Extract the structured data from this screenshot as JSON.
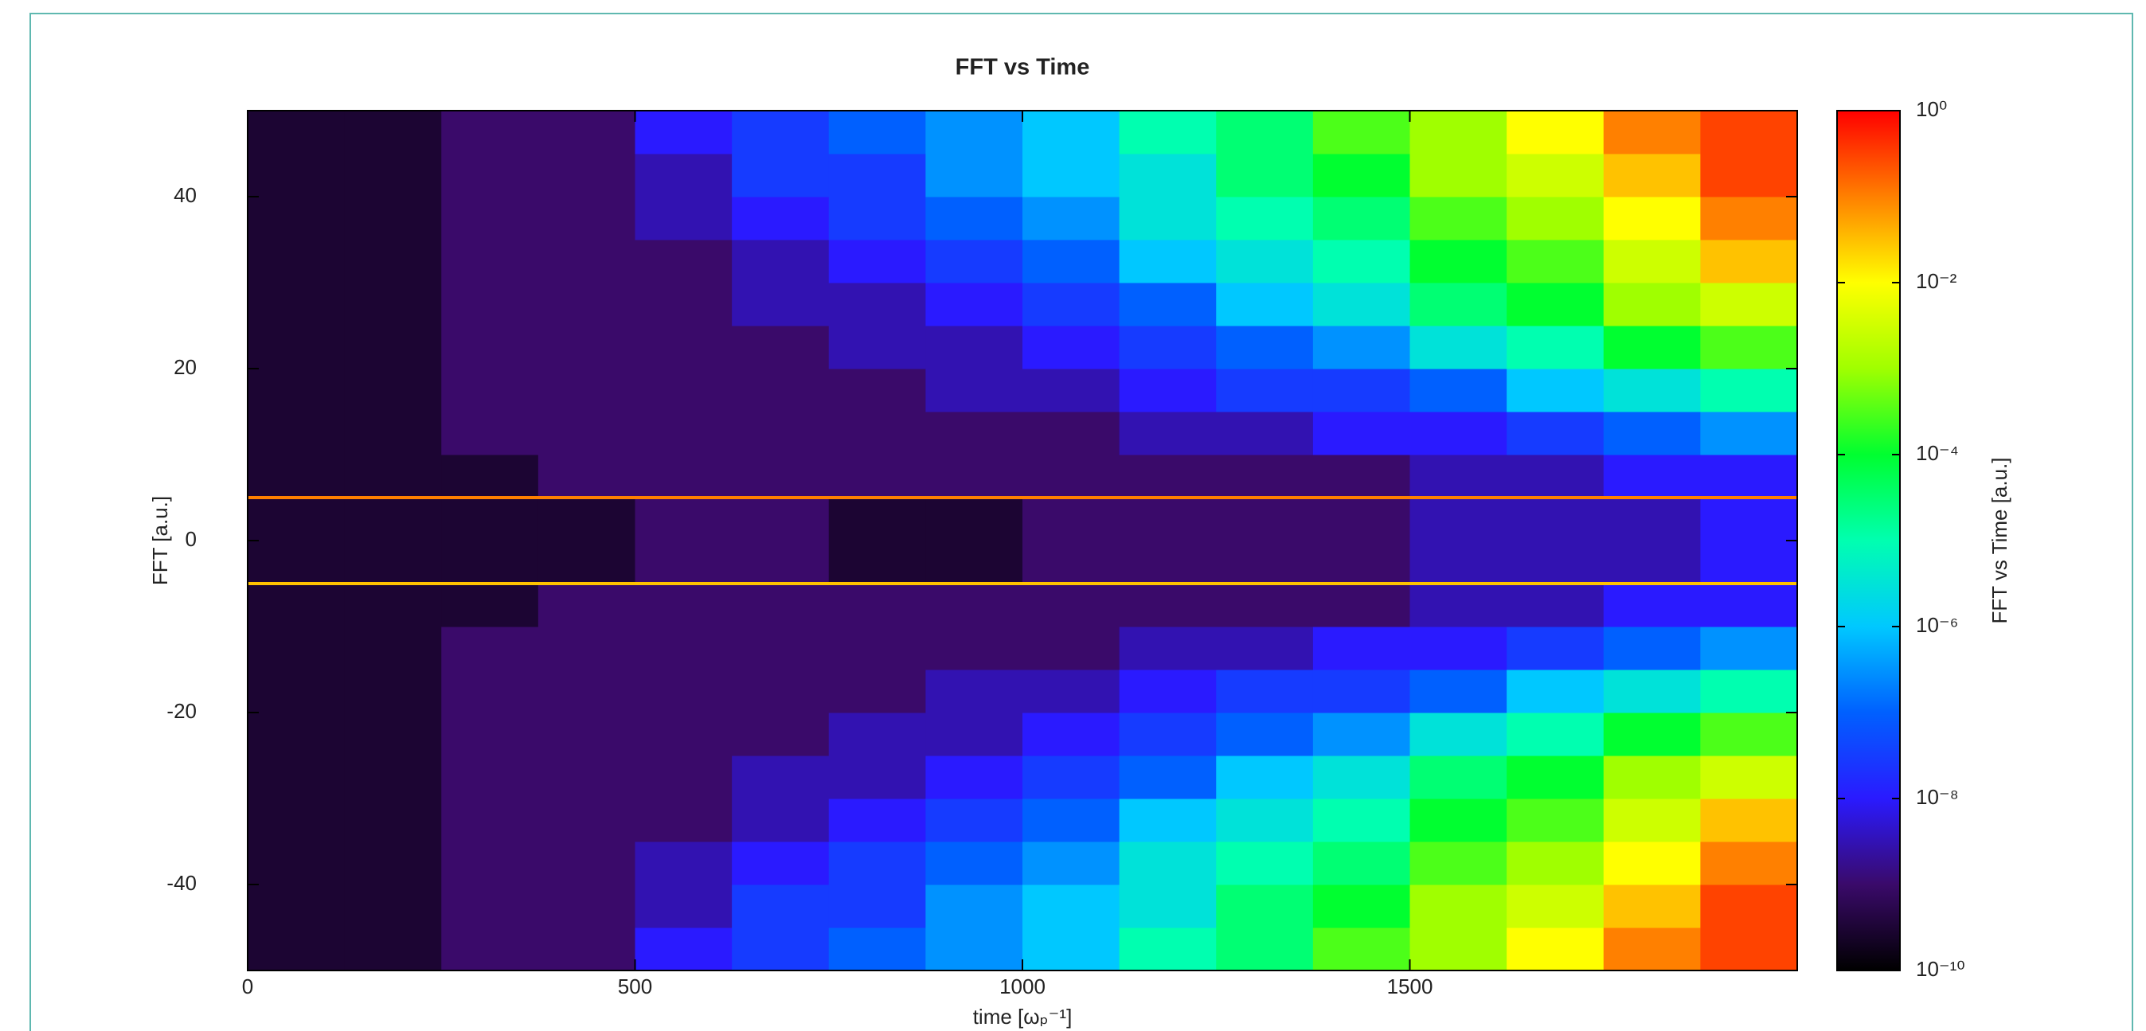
{
  "chart_data": {
    "type": "heatmap",
    "title": "FFT vs Time",
    "x_label": "time [ωₚ⁻¹]",
    "y_label": "FFT [a.u.]",
    "colorbar_label": "FFT vs Time [a.u.]",
    "xlim": [
      0,
      2000
    ],
    "xticks": [
      0,
      500,
      1000,
      1500
    ],
    "ylim": [
      -50,
      50
    ],
    "yticks": [
      -40,
      -20,
      0,
      20,
      40
    ],
    "color_scale": "log",
    "clim": [
      1e-10,
      1
    ],
    "cticks": [
      {
        "value": 1,
        "label": "10⁰"
      },
      {
        "value": 0.01,
        "label": "10⁻²"
      },
      {
        "value": 0.0001,
        "label": "10⁻⁴"
      },
      {
        "value": 1e-06,
        "label": "10⁻⁶"
      },
      {
        "value": 1e-08,
        "label": "10⁻⁸"
      },
      {
        "value": 1e-10,
        "label": "10⁻¹⁰"
      }
    ],
    "colormap": [
      "#000000",
      "#3a0a6a",
      "#2a1aff",
      "#0060ff",
      "#00c8ff",
      "#00ffb0",
      "#00ff30",
      "#a0ff00",
      "#ffff00",
      "#ff8000",
      "#ff0000"
    ],
    "xbins": [
      0,
      125,
      250,
      375,
      500,
      625,
      750,
      875,
      1000,
      1125,
      1250,
      1375,
      1500,
      1625,
      1750,
      1875,
      2000
    ],
    "ybins": [
      -50,
      -45,
      -40,
      -35,
      -30,
      -25,
      -20,
      -15,
      -10,
      -5,
      0,
      5,
      10,
      15,
      20,
      25,
      30,
      35,
      40,
      45,
      50
    ],
    "values": [
      [
        3e-10,
        3e-10,
        1e-09,
        1e-09,
        1e-08,
        3e-08,
        1e-07,
        3e-07,
        1e-06,
        1e-05,
        3e-05,
        0.0003,
        0.001,
        0.01,
        0.1,
        0.3
      ],
      [
        3e-10,
        3e-10,
        1e-09,
        1e-09,
        3e-09,
        3e-08,
        3e-08,
        3e-07,
        1e-06,
        3e-06,
        3e-05,
        0.0001,
        0.001,
        0.003,
        0.03,
        0.3
      ],
      [
        3e-10,
        3e-10,
        1e-09,
        1e-09,
        3e-09,
        1e-08,
        3e-08,
        1e-07,
        3e-07,
        3e-06,
        1e-05,
        3e-05,
        0.0003,
        0.001,
        0.01,
        0.1
      ],
      [
        3e-10,
        3e-10,
        1e-09,
        1e-09,
        1e-09,
        3e-09,
        1e-08,
        3e-08,
        1e-07,
        1e-06,
        3e-06,
        1e-05,
        0.0001,
        0.0003,
        0.003,
        0.03
      ],
      [
        3e-10,
        3e-10,
        1e-09,
        1e-09,
        1e-09,
        3e-09,
        3e-09,
        1e-08,
        3e-08,
        1e-07,
        1e-06,
        3e-06,
        3e-05,
        0.0001,
        0.001,
        0.003
      ],
      [
        3e-10,
        3e-10,
        1e-09,
        1e-09,
        1e-09,
        1e-09,
        3e-09,
        3e-09,
        1e-08,
        3e-08,
        1e-07,
        3e-07,
        3e-06,
        1e-05,
        0.0001,
        0.0003
      ],
      [
        3e-10,
        3e-10,
        1e-09,
        1e-09,
        1e-09,
        1e-09,
        1e-09,
        3e-09,
        3e-09,
        1e-08,
        3e-08,
        3e-08,
        1e-07,
        1e-06,
        3e-06,
        1e-05
      ],
      [
        3e-10,
        3e-10,
        1e-09,
        1e-09,
        1e-09,
        1e-09,
        1e-09,
        1e-09,
        1e-09,
        3e-09,
        3e-09,
        1e-08,
        1e-08,
        3e-08,
        1e-07,
        3e-07
      ],
      [
        3e-10,
        3e-10,
        3e-10,
        1e-09,
        1e-09,
        1e-09,
        1e-09,
        1e-09,
        1e-09,
        1e-09,
        1e-09,
        1e-09,
        3e-09,
        3e-09,
        1e-08,
        1e-08
      ],
      [
        3e-10,
        3e-10,
        3e-10,
        3e-10,
        1e-09,
        1e-09,
        3e-10,
        3e-10,
        1e-09,
        1e-09,
        1e-09,
        1e-09,
        3e-09,
        3e-09,
        3e-09,
        1e-08
      ],
      [
        3e-10,
        3e-10,
        3e-10,
        3e-10,
        1e-09,
        1e-09,
        3e-10,
        3e-10,
        1e-09,
        1e-09,
        1e-09,
        1e-09,
        3e-09,
        3e-09,
        3e-09,
        1e-08
      ],
      [
        3e-10,
        3e-10,
        3e-10,
        1e-09,
        1e-09,
        1e-09,
        1e-09,
        1e-09,
        1e-09,
        1e-09,
        1e-09,
        1e-09,
        3e-09,
        3e-09,
        1e-08,
        1e-08
      ],
      [
        3e-10,
        3e-10,
        1e-09,
        1e-09,
        1e-09,
        1e-09,
        1e-09,
        1e-09,
        1e-09,
        3e-09,
        3e-09,
        1e-08,
        1e-08,
        3e-08,
        1e-07,
        3e-07
      ],
      [
        3e-10,
        3e-10,
        1e-09,
        1e-09,
        1e-09,
        1e-09,
        1e-09,
        3e-09,
        3e-09,
        1e-08,
        3e-08,
        3e-08,
        1e-07,
        1e-06,
        3e-06,
        1e-05
      ],
      [
        3e-10,
        3e-10,
        1e-09,
        1e-09,
        1e-09,
        1e-09,
        3e-09,
        3e-09,
        1e-08,
        3e-08,
        1e-07,
        3e-07,
        3e-06,
        1e-05,
        0.0001,
        0.0003
      ],
      [
        3e-10,
        3e-10,
        1e-09,
        1e-09,
        1e-09,
        3e-09,
        3e-09,
        1e-08,
        3e-08,
        1e-07,
        1e-06,
        3e-06,
        3e-05,
        0.0001,
        0.001,
        0.003
      ],
      [
        3e-10,
        3e-10,
        1e-09,
        1e-09,
        1e-09,
        3e-09,
        1e-08,
        3e-08,
        1e-07,
        1e-06,
        3e-06,
        1e-05,
        0.0001,
        0.0003,
        0.003,
        0.03
      ],
      [
        3e-10,
        3e-10,
        1e-09,
        1e-09,
        3e-09,
        1e-08,
        3e-08,
        1e-07,
        3e-07,
        3e-06,
        1e-05,
        3e-05,
        0.0003,
        0.001,
        0.01,
        0.1
      ],
      [
        3e-10,
        3e-10,
        1e-09,
        1e-09,
        3e-09,
        3e-08,
        3e-08,
        3e-07,
        1e-06,
        3e-06,
        3e-05,
        0.0001,
        0.001,
        0.003,
        0.03,
        0.3
      ],
      [
        3e-10,
        3e-10,
        1e-09,
        1e-09,
        1e-08,
        3e-08,
        1e-07,
        3e-07,
        1e-06,
        1e-05,
        3e-05,
        0.0003,
        0.001,
        0.01,
        0.1,
        0.3
      ]
    ],
    "lines": [
      {
        "y": 5,
        "value": 0.1
      },
      {
        "y": -5,
        "value": 0.03
      }
    ]
  }
}
